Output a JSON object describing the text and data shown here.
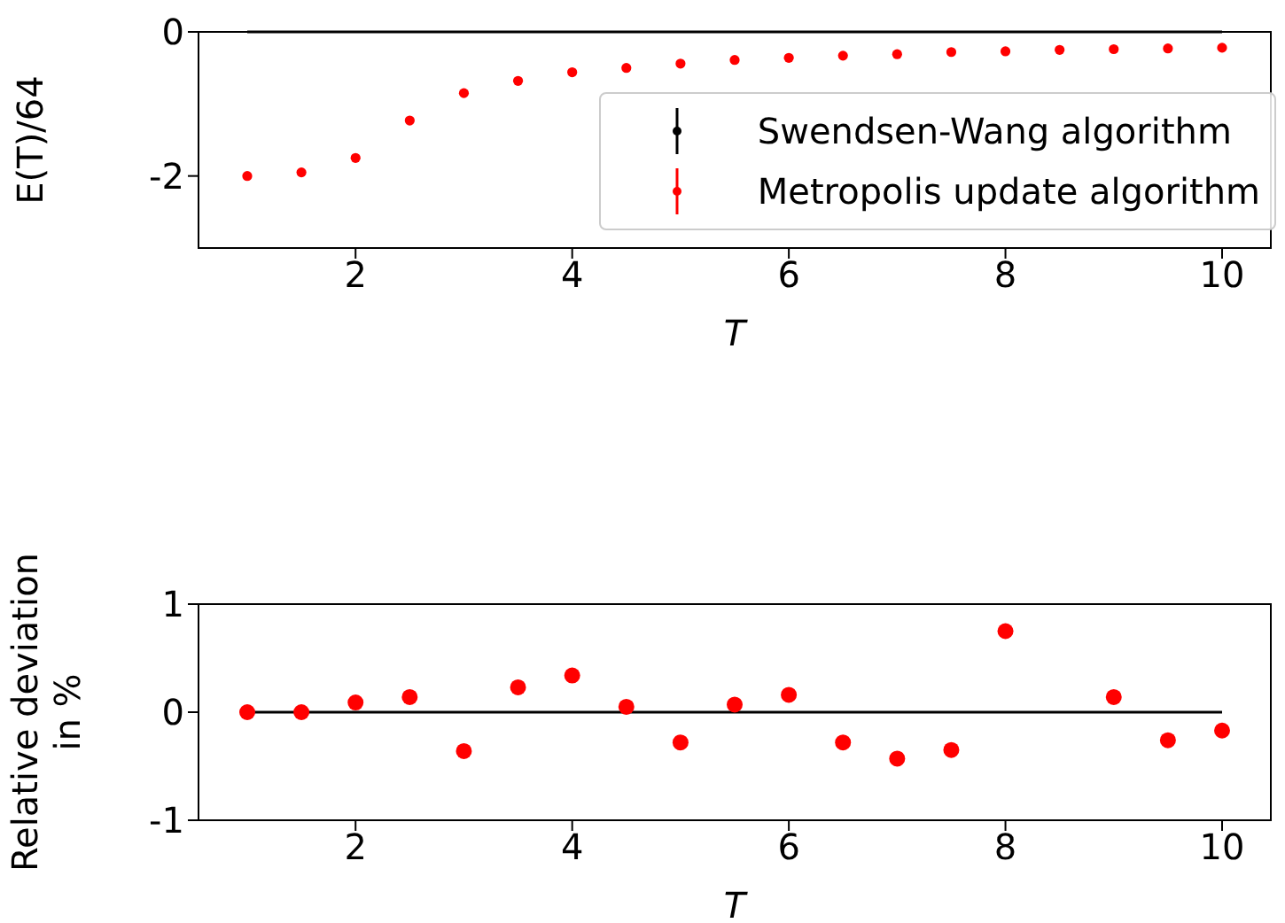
{
  "chart_data": [
    {
      "type": "scatter",
      "xlabel": "T",
      "ylabel": "E(T)/64",
      "x": [
        1,
        1.5,
        2,
        2.5,
        3,
        3.5,
        4,
        4.5,
        5,
        5.5,
        6,
        6.5,
        7,
        7.5,
        8,
        8.5,
        9,
        9.5,
        10
      ],
      "xlim": [
        0.55,
        10.45
      ],
      "xticks": [
        2,
        4,
        6,
        8,
        10
      ],
      "ylim": [
        -3,
        0
      ],
      "yticks": [
        0,
        -2
      ],
      "marker": "circle",
      "legend": "bottom right",
      "grid": false,
      "series": [
        {
          "name": "Swendsen-Wang algorithm",
          "color": "#000000",
          "values": [
            null,
            null,
            null,
            null,
            null,
            null,
            null,
            null,
            null,
            null,
            null,
            null,
            null,
            null,
            null,
            null,
            null,
            null,
            null
          ]
        },
        {
          "name": "Metropolis update algorithm",
          "color": "#ff0000",
          "values": [
            -2.0,
            -1.95,
            -1.75,
            -1.23,
            -0.85,
            -0.68,
            -0.56,
            -0.5,
            -0.44,
            -0.39,
            -0.36,
            -0.33,
            -0.31,
            -0.28,
            -0.27,
            -0.25,
            -0.24,
            -0.23,
            -0.22
          ]
        }
      ],
      "ref_lines": [
        {
          "axis": "y",
          "value": 0,
          "color": "#000000"
        }
      ]
    },
    {
      "type": "scatter",
      "xlabel": "T",
      "ylabel": "Relative deviation in %",
      "x": [
        1,
        1.5,
        2,
        2.5,
        3,
        3.5,
        4,
        4.5,
        5,
        5.5,
        6,
        6.5,
        7,
        7.5,
        8,
        8.5,
        9,
        9.5,
        10
      ],
      "xlim": [
        0.55,
        10.45
      ],
      "xticks": [
        2,
        4,
        6,
        8,
        10
      ],
      "ylim": [
        -1,
        1
      ],
      "yticks": [
        -1,
        0,
        1
      ],
      "marker": "circle",
      "legend": false,
      "grid": false,
      "series": [
        {
          "color": "#ff0000",
          "values": [
            0,
            0,
            0.09,
            0.14,
            -0.36,
            0.23,
            0.34,
            0.05,
            -0.28,
            0.07,
            0.16,
            -0.28,
            -0.43,
            -0.35,
            0.75,
            null,
            0.14,
            -0.26,
            -0.17
          ]
        }
      ],
      "ref_lines": [
        {
          "axis": "y",
          "value": 0,
          "color": "#000000"
        }
      ]
    }
  ]
}
